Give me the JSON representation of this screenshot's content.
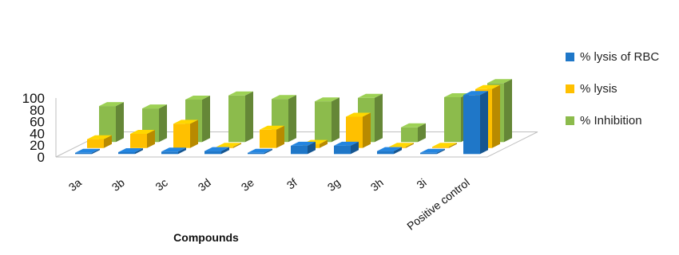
{
  "chart_data": {
    "type": "bar",
    "xlabel": "Compounds",
    "ylabel": "",
    "ylim": [
      0,
      100
    ],
    "yticks": [
      0,
      20,
      40,
      60,
      80,
      100
    ],
    "categories": [
      "3a",
      "3b",
      "3c",
      "3d",
      "3e",
      "3f",
      "3g",
      "3h",
      "3i",
      "Positive control"
    ],
    "series": [
      {
        "name": "% lysis of RBC",
        "color": "#1f77c8",
        "values": [
          2,
          3,
          4,
          5,
          2,
          14,
          14,
          5,
          2,
          100
        ]
      },
      {
        "name": "% lysis",
        "color": "#ffc000",
        "values": [
          15,
          24,
          41,
          0,
          31,
          7,
          53,
          0,
          2,
          100
        ]
      },
      {
        "name": "% Inhibition",
        "color": "#8cbb4c",
        "values": [
          61,
          57,
          72,
          79,
          73,
          69,
          75,
          25,
          76,
          100
        ]
      }
    ],
    "legend_position": "right",
    "grid": false
  }
}
